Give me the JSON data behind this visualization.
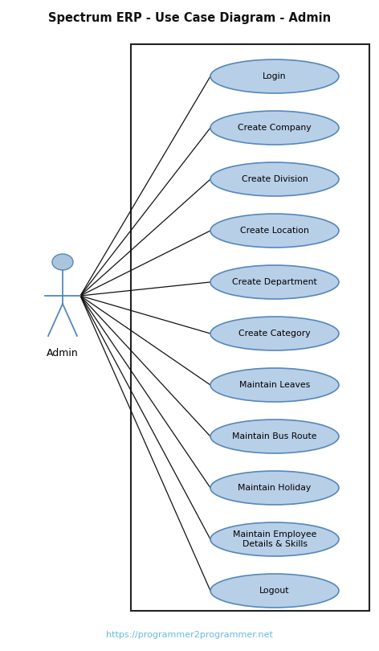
{
  "title": "Spectrum ERP - Use Case Diagram - Admin",
  "footer": "https://programmer2programmer.net",
  "actor_label": "Admin",
  "use_cases": [
    "Login",
    "Create Company",
    "Create Division",
    "Create Location",
    "Create Department",
    "Create Category",
    "Maintain Leaves",
    "Maintain Bus Route",
    "Maintain Holiday",
    "Maintain Employee\nDetails & Skills",
    "Logout"
  ],
  "ellipse_fill": "#b8cfe8",
  "ellipse_edge": "#5588bb",
  "box_fill": "white",
  "box_edge": "#222222",
  "actor_fill": "#aac4dc",
  "actor_edge": "#5588bb",
  "title_color": "#111111",
  "footer_color": "#66bbdd",
  "line_color": "#111111",
  "fig_width": 4.72,
  "fig_height": 8.1,
  "dpi": 100
}
